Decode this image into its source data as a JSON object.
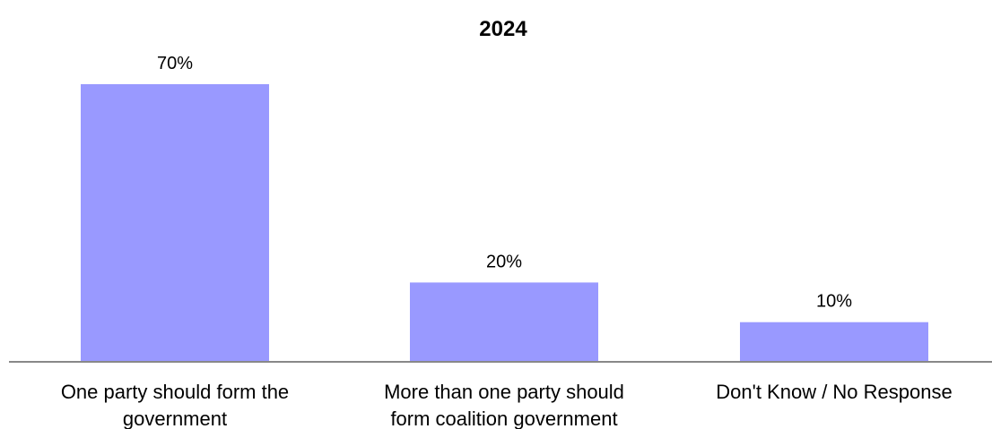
{
  "chart_data": {
    "type": "bar",
    "title": "2024",
    "xlabel": "",
    "ylabel": "",
    "categories": [
      [
        "One party should form the",
        "government"
      ],
      [
        "More than one party should",
        "form coalition government"
      ],
      [
        "Don't Know / No Response"
      ]
    ],
    "values": [
      70,
      20,
      10
    ],
    "data_labels": [
      "70%",
      "20%",
      "10%"
    ],
    "ylim": [
      0,
      70
    ],
    "grid": false,
    "legend": "none",
    "colors": {
      "bar": "#9999ff",
      "axis": "#888888",
      "text": "#000000"
    }
  }
}
